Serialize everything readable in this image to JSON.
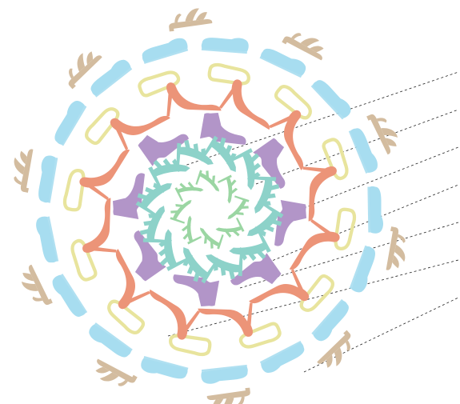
{
  "colors": {
    "background": "#ffffff",
    "sandal": "#d3bc9f",
    "loafer": "#a7ddf0",
    "ballet_flat": "#e8e49d",
    "stiletto": "#ec9478",
    "wedge": "#b295c8",
    "gladiator": "#8dd2c9",
    "strappy_heel": "#9bd6a3",
    "guide_line": "#222222"
  },
  "rings": [
    {
      "id": "ring-sandals",
      "icon": "flat-sandal-icon",
      "color_key": "sandal",
      "count": 10
    },
    {
      "id": "ring-loafers",
      "icon": "loafer-icon",
      "color_key": "loafer",
      "count": 17
    },
    {
      "id": "ring-ballet-flats",
      "icon": "ballet-flat-outline-icon",
      "color_key": "ballet_flat",
      "count": 12
    },
    {
      "id": "ring-stilettos",
      "icon": "stiletto-pump-icon",
      "color_key": "stiletto",
      "count": 12
    },
    {
      "id": "ring-wedges",
      "icon": "wedge-heel-icon",
      "color_key": "wedge",
      "count": 8
    },
    {
      "id": "ring-gladiators",
      "icon": "gladiator-heel-icon",
      "color_key": "gladiator",
      "count": 12
    },
    {
      "id": "ring-strappy-heels",
      "icon": "strappy-heel-icon",
      "color_key": "strappy_heel",
      "count": 8
    }
  ],
  "guide_lines": {
    "count": 7,
    "style": "dashed"
  }
}
